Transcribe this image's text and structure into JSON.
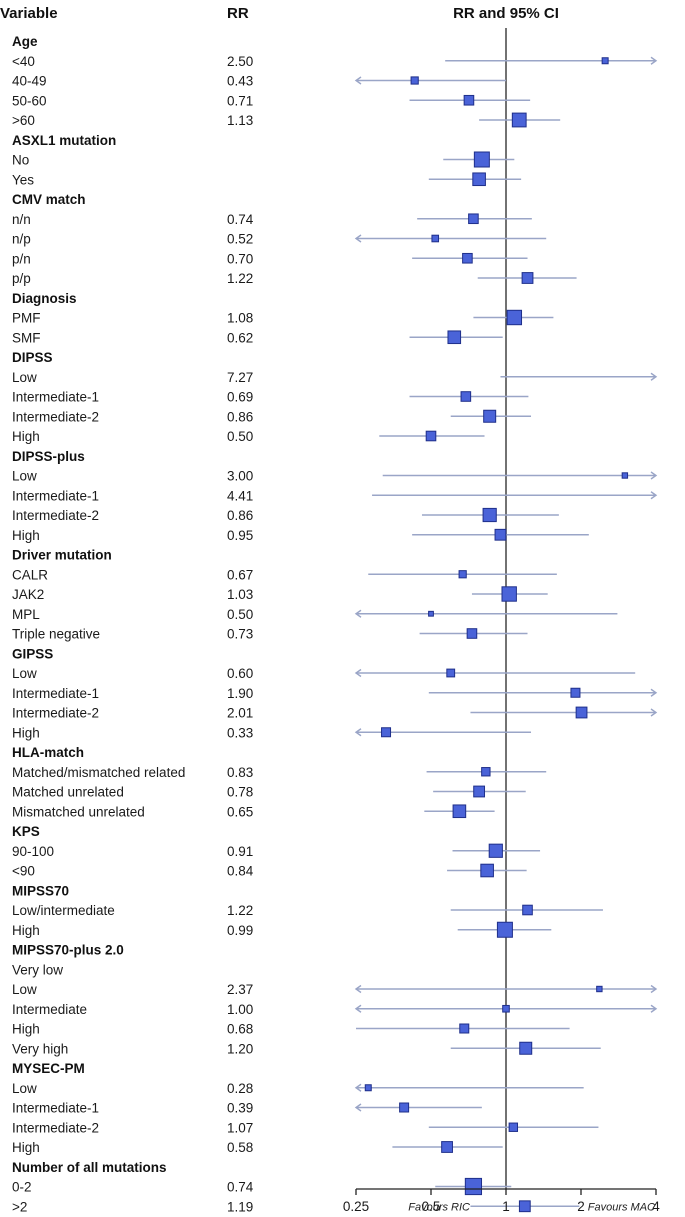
{
  "chart_data": {
    "type": "forest",
    "headers": {
      "variable": "Variable",
      "rr": "RR",
      "ci": "RR and 95% CI"
    },
    "x_scale": "log2",
    "xlim": [
      0.25,
      4
    ],
    "xticks": [
      {
        "value": 0.25,
        "label": "0.25"
      },
      {
        "value": 0.5,
        "label": "0.5"
      },
      {
        "value": 1,
        "label": "1"
      },
      {
        "value": 2,
        "label": "2"
      },
      {
        "value": 4,
        "label": "4"
      }
    ],
    "reference_line": 1,
    "favours_left": "Favours RIC",
    "favours_right": "Favours MAC",
    "colors": {
      "marker": "#4a63d8",
      "marker_edge": "#1f2f8a",
      "ci_line": "#9aa5c7",
      "axis": "#222222"
    },
    "groups": [
      {
        "name": "Age",
        "rows": [
          {
            "label": "<40",
            "rr": "2.50",
            "est": 2.5,
            "lo": 0.57,
            "hi": 4.0,
            "w": 0.25,
            "ah": true
          },
          {
            "label": "40-49",
            "rr": "0.43",
            "est": 0.43,
            "lo": 0.25,
            "hi": 1.0,
            "w": 0.35,
            "al": true
          },
          {
            "label": "50-60",
            "rr": "0.71",
            "est": 0.71,
            "lo": 0.41,
            "hi": 1.25,
            "w": 0.55
          },
          {
            "label": ">60",
            "rr": "1.13",
            "est": 1.13,
            "lo": 0.78,
            "hi": 1.65,
            "w": 0.9
          }
        ]
      },
      {
        "name": "ASXL1 mutation",
        "rows": [
          {
            "label": "No",
            "rr": "",
            "est": 0.8,
            "lo": 0.56,
            "hi": 1.08,
            "w": 1.0
          },
          {
            "label": "Yes",
            "rr": "",
            "est": 0.78,
            "lo": 0.49,
            "hi": 1.15,
            "w": 0.8
          }
        ]
      },
      {
        "name": "CMV match",
        "rows": [
          {
            "label": "n/n",
            "rr": "0.74",
            "est": 0.74,
            "lo": 0.44,
            "hi": 1.27,
            "w": 0.55
          },
          {
            "label": "n/p",
            "rr": "0.52",
            "est": 0.52,
            "lo": 0.25,
            "hi": 1.45,
            "w": 0.3,
            "al": true
          },
          {
            "label": "p/n",
            "rr": "0.70",
            "est": 0.7,
            "lo": 0.42,
            "hi": 1.22,
            "w": 0.55
          },
          {
            "label": "p/p",
            "rr": "1.22",
            "est": 1.22,
            "lo": 0.77,
            "hi": 1.92,
            "w": 0.65
          }
        ]
      },
      {
        "name": "Diagnosis",
        "rows": [
          {
            "label": "PMF",
            "rr": "1.08",
            "est": 1.08,
            "lo": 0.74,
            "hi": 1.55,
            "w": 0.95
          },
          {
            "label": "SMF",
            "rr": "0.62",
            "est": 0.62,
            "lo": 0.41,
            "hi": 0.97,
            "w": 0.8
          }
        ]
      },
      {
        "name": "DIPSS",
        "rows": [
          {
            "label": "Low",
            "rr": "7.27",
            "est": null,
            "lo": 0.95,
            "hi": 4.0,
            "w": 0,
            "ah": true
          },
          {
            "label": "Intermediate-1",
            "rr": "0.69",
            "est": 0.69,
            "lo": 0.41,
            "hi": 1.23,
            "w": 0.55
          },
          {
            "label": "Intermediate-2",
            "rr": "0.86",
            "est": 0.86,
            "lo": 0.6,
            "hi": 1.26,
            "w": 0.75
          },
          {
            "label": "High",
            "rr": "0.50",
            "est": 0.5,
            "lo": 0.31,
            "hi": 0.82,
            "w": 0.55
          }
        ]
      },
      {
        "name": "DIPSS-plus",
        "rows": [
          {
            "label": "Low",
            "rr": "3.00",
            "est": 3.0,
            "lo": 0.32,
            "hi": 4.0,
            "w": 0.2,
            "ah": true
          },
          {
            "label": "Intermediate-1",
            "rr": "4.41",
            "est": null,
            "lo": 0.29,
            "hi": 4.0,
            "w": 0,
            "ah": true
          },
          {
            "label": "Intermediate-2",
            "rr": "0.86",
            "est": 0.86,
            "lo": 0.46,
            "hi": 1.63,
            "w": 0.85
          },
          {
            "label": "High",
            "rr": "0.95",
            "est": 0.95,
            "lo": 0.42,
            "hi": 2.15,
            "w": 0.65
          }
        ]
      },
      {
        "name": "Driver mutation",
        "rows": [
          {
            "label": "CALR",
            "rr": "0.67",
            "est": 0.67,
            "lo": 0.28,
            "hi": 1.6,
            "w": 0.35
          },
          {
            "label": "JAK2",
            "rr": "1.03",
            "est": 1.03,
            "lo": 0.73,
            "hi": 1.47,
            "w": 0.95
          },
          {
            "label": "MPL",
            "rr": "0.50",
            "est": 0.5,
            "lo": 0.25,
            "hi": 2.8,
            "w": 0.15,
            "al": true
          },
          {
            "label": "Triple negative",
            "rr": "0.73",
            "est": 0.73,
            "lo": 0.45,
            "hi": 1.22,
            "w": 0.55
          }
        ]
      },
      {
        "name": "GIPSS",
        "rows": [
          {
            "label": "Low",
            "rr": "0.60",
            "est": 0.6,
            "lo": 0.25,
            "hi": 3.3,
            "w": 0.4,
            "al": true
          },
          {
            "label": "Intermediate-1",
            "rr": "1.90",
            "est": 1.9,
            "lo": 0.49,
            "hi": 4.0,
            "w": 0.5,
            "ah": true
          },
          {
            "label": "Intermediate-2",
            "rr": "2.01",
            "est": 2.01,
            "lo": 0.72,
            "hi": 4.0,
            "w": 0.65,
            "ah": true
          },
          {
            "label": "High",
            "rr": "0.33",
            "est": 0.33,
            "lo": 0.25,
            "hi": 1.26,
            "w": 0.5,
            "al": true
          }
        ]
      },
      {
        "name": "HLA-match",
        "rows": [
          {
            "label": "Matched/mismatched related",
            "rr": "0.83",
            "est": 0.83,
            "lo": 0.48,
            "hi": 1.45,
            "w": 0.45
          },
          {
            "label": "Matched unrelated",
            "rr": "0.78",
            "est": 0.78,
            "lo": 0.51,
            "hi": 1.2,
            "w": 0.65
          },
          {
            "label": "Mismatched unrelated",
            "rr": "0.65",
            "est": 0.65,
            "lo": 0.47,
            "hi": 0.9,
            "w": 0.8
          }
        ]
      },
      {
        "name": "KPS",
        "rows": [
          {
            "label": "90-100",
            "rr": "0.91",
            "est": 0.91,
            "lo": 0.61,
            "hi": 1.37,
            "w": 0.85
          },
          {
            "label": "<90",
            "rr": "0.84",
            "est": 0.84,
            "lo": 0.58,
            "hi": 1.21,
            "w": 0.8
          }
        ]
      },
      {
        "name": "MIPSS70",
        "rows": [
          {
            "label": "Low/intermediate",
            "rr": "1.22",
            "est": 1.22,
            "lo": 0.6,
            "hi": 2.45,
            "w": 0.55
          },
          {
            "label": "High",
            "rr": "0.99",
            "est": 0.99,
            "lo": 0.64,
            "hi": 1.52,
            "w": 1.0
          }
        ]
      },
      {
        "name": "MIPSS70-plus 2.0",
        "rows": [
          {
            "label": "Very low",
            "rr": "",
            "est": null,
            "lo": null,
            "hi": null,
            "w": 0
          },
          {
            "label": "Low",
            "rr": "2.37",
            "est": 2.37,
            "lo": 0.25,
            "hi": 4.0,
            "w": 0.2,
            "al": true,
            "ah": true
          },
          {
            "label": "Intermediate",
            "rr": "1.00",
            "est": 1.0,
            "lo": 0.25,
            "hi": 4.0,
            "w": 0.3,
            "al": true,
            "ah": true
          },
          {
            "label": "High",
            "rr": "0.68",
            "est": 0.68,
            "lo": 0.25,
            "hi": 1.8,
            "w": 0.5
          },
          {
            "label": "Very high",
            "rr": "1.20",
            "est": 1.2,
            "lo": 0.6,
            "hi": 2.4,
            "w": 0.75
          }
        ]
      },
      {
        "name": "MYSEC-PM",
        "rows": [
          {
            "label": "Low",
            "rr": "0.28",
            "est": 0.28,
            "lo": 0.25,
            "hi": 2.05,
            "w": 0.25,
            "al": true
          },
          {
            "label": "Intermediate-1",
            "rr": "0.39",
            "est": 0.39,
            "lo": 0.25,
            "hi": 0.8,
            "w": 0.5,
            "al": true
          },
          {
            "label": "Intermediate-2",
            "rr": "1.07",
            "est": 1.07,
            "lo": 0.49,
            "hi": 2.35,
            "w": 0.45
          },
          {
            "label": "High",
            "rr": "0.58",
            "est": 0.58,
            "lo": 0.35,
            "hi": 0.97,
            "w": 0.65
          }
        ]
      },
      {
        "name": "Number of all mutations",
        "rows": [
          {
            "label": "0-2",
            "rr": "0.74",
            "est": 0.74,
            "lo": 0.52,
            "hi": 1.05,
            "w": 1.1
          },
          {
            "label": ">2",
            "rr": "1.19",
            "est": 1.19,
            "lo": 0.72,
            "hi": 1.97,
            "w": 0.65
          }
        ]
      }
    ]
  }
}
